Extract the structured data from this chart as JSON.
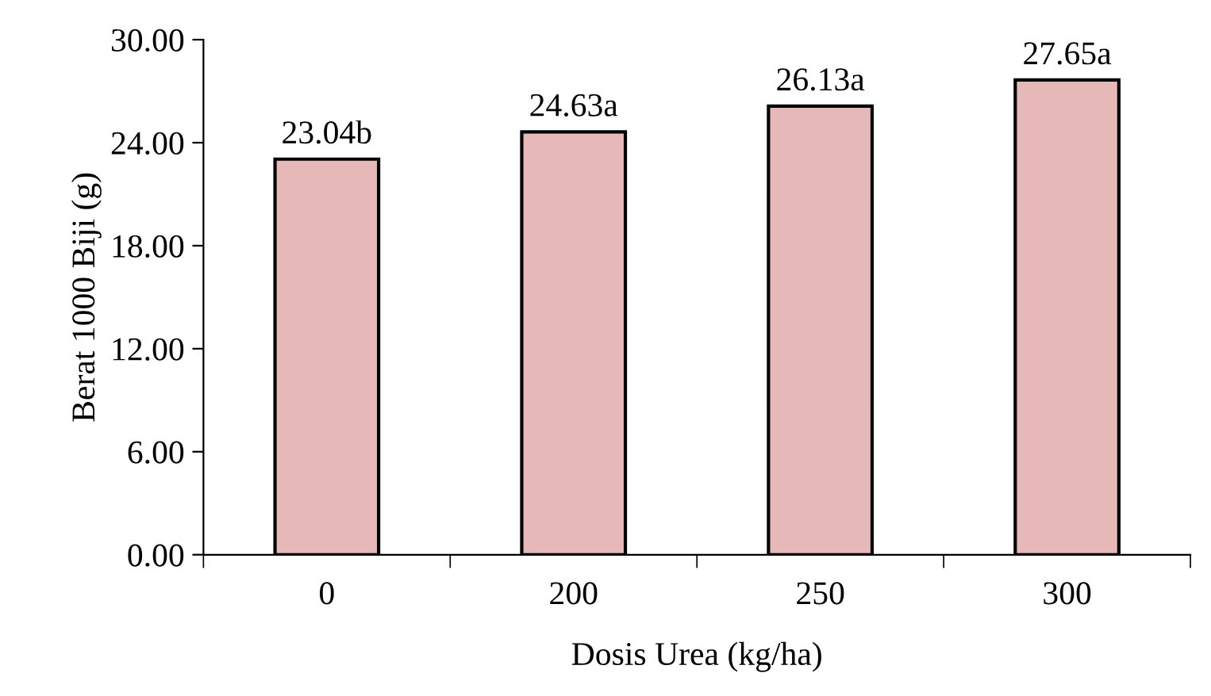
{
  "chart_data": {
    "type": "bar",
    "xlabel": "Dosis Urea (kg/ha)",
    "ylabel": "Berat 1000 Biji (g)",
    "categories": [
      "0",
      "200",
      "250",
      "300"
    ],
    "values": [
      23.04,
      24.63,
      26.13,
      27.65
    ],
    "value_labels": [
      "23.04b",
      "24.63a",
      "26.13a",
      "27.65a"
    ],
    "color": "#e6b8b7",
    "ylim": [
      0,
      30
    ],
    "yticks": [
      {
        "value": 0,
        "label": "0.00"
      },
      {
        "value": 6,
        "label": "6.00"
      },
      {
        "value": 12,
        "label": "12.00"
      },
      {
        "value": 18,
        "label": "18.00"
      },
      {
        "value": 24,
        "label": "24.00"
      },
      {
        "value": 30,
        "label": "30.00"
      }
    ],
    "grid": false,
    "legend": false
  }
}
